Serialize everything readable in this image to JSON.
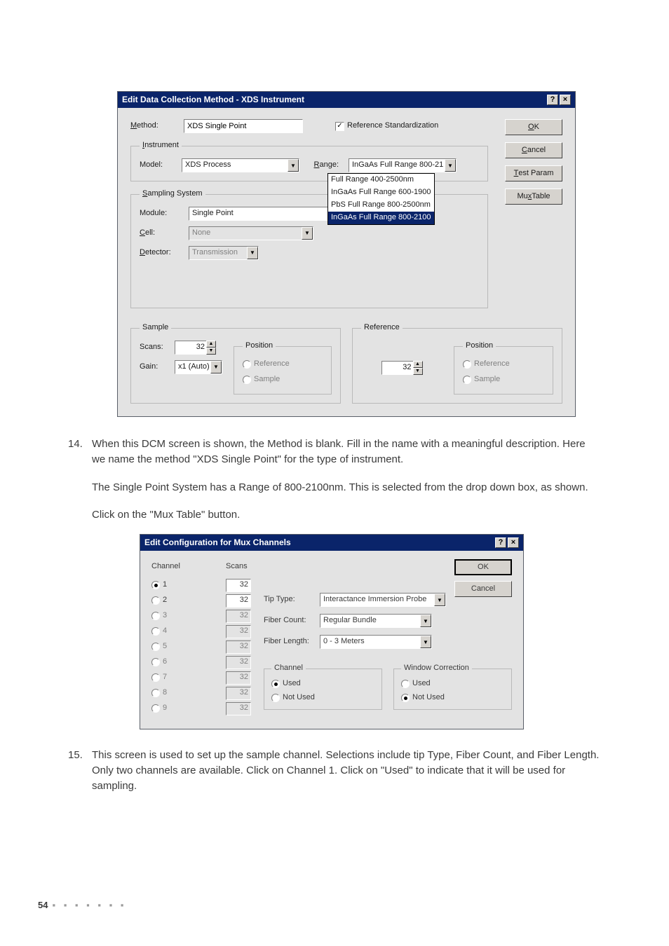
{
  "dialog1": {
    "title": "Edit Data Collection Method - XDS Instrument",
    "method_label": "Method:",
    "method_value": "XDS Single Point",
    "ref_std_label": "Reference Standardization",
    "ref_std_checked": true,
    "buttons": {
      "ok": "OK",
      "cancel": "Cancel",
      "test_param": "Test Param",
      "mux_table": "Mux Table"
    },
    "instrument": {
      "legend": "Instrument",
      "model_label": "Model:",
      "model_value": "XDS Process",
      "range_label": "Range:",
      "range_value": "InGaAs Full Range 800-21",
      "range_options": [
        "Full Range 400-2500nm",
        "InGaAs Full Range 600-1900",
        "PbS Full Range 800-2500nm",
        "InGaAs Full Range 800-2100"
      ],
      "range_selected_index": 3
    },
    "sampling": {
      "legend": "Sampling System",
      "module_label": "Module:",
      "module_value": "Single Point",
      "cell_label": "Cell:",
      "cell_value": "None",
      "detector_label": "Detector:",
      "detector_value": "Transmission"
    },
    "sample": {
      "legend": "Sample",
      "scans_label": "Scans:",
      "scans_value": "32",
      "gain_label": "Gain:",
      "gain_value": "x1 (Auto)",
      "position_legend": "Position",
      "ref_label": "Reference",
      "samp_label": "Sample"
    },
    "reference": {
      "legend": "Reference",
      "scans_value": "32",
      "position_legend": "Position",
      "ref_label": "Reference",
      "samp_label": "Sample"
    }
  },
  "text": {
    "p14_num": "14.",
    "p14_body": "When this DCM screen is shown, the Method is blank. Fill in the name with a meaningful description. Here we name the method \"XDS Single Point\" for the type of instrument.",
    "p14b": "The Single Point System has a Range of 800-2100nm. This is selected from the drop down box, as shown.",
    "p14c": "Click on the \"Mux Table\" button.",
    "p15_num": "15.",
    "p15_body": "This screen is used to set up the sample channel. Selections include tip Type, Fiber Count, and Fiber Length. Only two channels are available. Click on Channel 1. Click on \"Used\" to indicate that it will be used for sampling."
  },
  "dialog2": {
    "title": "Edit Configuration for Mux Channels",
    "channel_header": "Channel",
    "scans_header": "Scans",
    "channels": [
      {
        "n": "1",
        "scans": "32",
        "enabled": true,
        "selected": true
      },
      {
        "n": "2",
        "scans": "32",
        "enabled": true,
        "selected": false
      },
      {
        "n": "3",
        "scans": "32",
        "enabled": false,
        "selected": false
      },
      {
        "n": "4",
        "scans": "32",
        "enabled": false,
        "selected": false
      },
      {
        "n": "5",
        "scans": "32",
        "enabled": false,
        "selected": false
      },
      {
        "n": "6",
        "scans": "32",
        "enabled": false,
        "selected": false
      },
      {
        "n": "7",
        "scans": "32",
        "enabled": false,
        "selected": false
      },
      {
        "n": "8",
        "scans": "32",
        "enabled": false,
        "selected": false
      },
      {
        "n": "9",
        "scans": "32",
        "enabled": false,
        "selected": false
      }
    ],
    "tip_type_label": "Tip Type:",
    "tip_type_value": "Interactance Immersion Probe",
    "fiber_count_label": "Fiber Count:",
    "fiber_count_value": "Regular Bundle",
    "fiber_length_label": "Fiber Length:",
    "fiber_length_value": "0 - 3 Meters",
    "channel_fs": {
      "legend": "Channel",
      "used": "Used",
      "notused": "Not Used",
      "selected": "used"
    },
    "window_fs": {
      "legend": "Window Correction",
      "used": "Used",
      "notused": "Not Used",
      "selected": "notused"
    },
    "buttons": {
      "ok": "OK",
      "cancel": "Cancel"
    }
  },
  "footer": {
    "page": "54",
    "dots": "▪ ▪ ▪ ▪ ▪ ▪ ▪"
  }
}
